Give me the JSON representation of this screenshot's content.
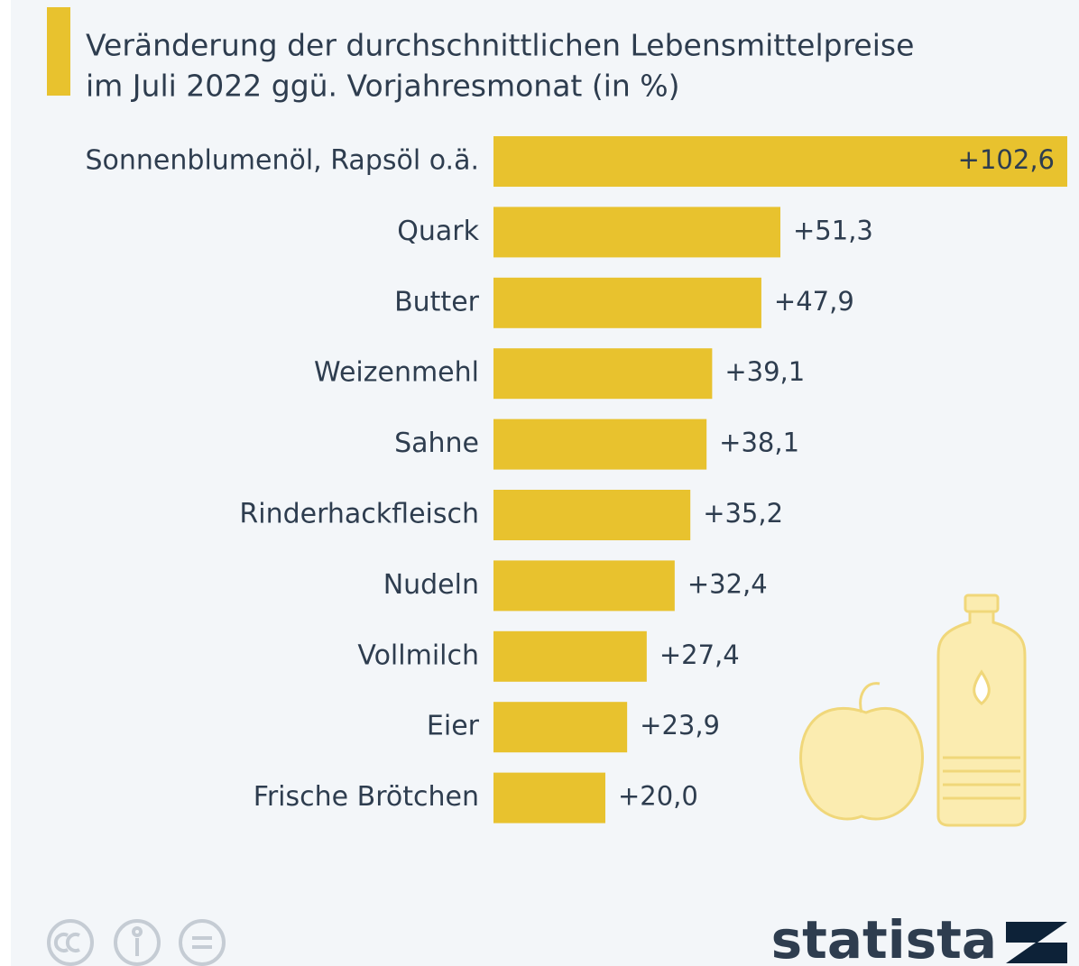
{
  "chart_data": {
    "type": "bar",
    "orientation": "horizontal",
    "title": [
      "Veränderung der durchschnittlichen Lebensmittelpreise",
      "im Juli 2022 ggü. Vorjahresmonat (in %)"
    ],
    "categories": [
      "Sonnenblumenöl, Rapsöl o.ä.",
      "Quark",
      "Butter",
      "Weizenmehl",
      "Sahne",
      "Rinderhackfleisch",
      "Nudeln",
      "Vollmilch",
      "Eier",
      "Frische Brötchen"
    ],
    "values": [
      102.6,
      51.3,
      47.9,
      39.1,
      38.1,
      35.2,
      32.4,
      27.4,
      23.9,
      20.0
    ],
    "value_labels": [
      "+102,6",
      "+51,3",
      "+47,9",
      "+39,1",
      "+38,1",
      "+35,2",
      "+32,4",
      "+27,4",
      "+23,9",
      "+20,0"
    ],
    "color": "#e8c22e"
  },
  "brand": "statista"
}
